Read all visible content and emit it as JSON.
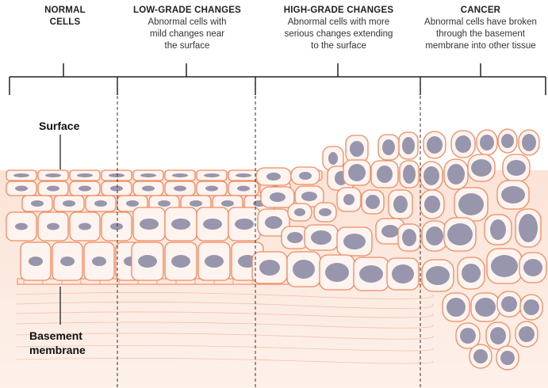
{
  "stages": [
    {
      "title": "NORMAL",
      "title2": "CELLS",
      "desc": []
    },
    {
      "title": "LOW-GRADE CHANGES",
      "title2": "",
      "desc": [
        "Abnormal cells with",
        "mild changes near",
        "the surface"
      ]
    },
    {
      "title": "HIGH-GRADE CHANGES",
      "title2": "",
      "desc": [
        "Abnormal cells with more",
        "serious changes extending",
        "to the surface"
      ]
    },
    {
      "title": "CANCER",
      "title2": "",
      "desc": [
        "Abnormal cells have broken",
        "through the basement",
        "membrane into other tissue"
      ]
    }
  ],
  "labels": {
    "surface": "Surface",
    "basement_1": "Basement",
    "basement_2": "membrane"
  },
  "colors": {
    "cell_outline": "#ef8a5f",
    "cell_fill": "#fdf3ef",
    "nucleus": "#9896ac",
    "tissue": "#fbe6da",
    "bracket": "#222222"
  }
}
